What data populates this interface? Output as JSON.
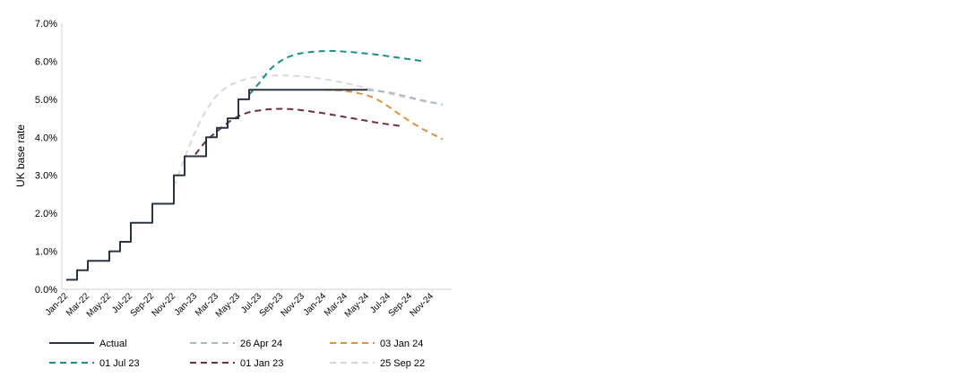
{
  "chart_data": {
    "type": "line",
    "title": "",
    "xlabel": "",
    "ylabel": "UK base rate",
    "ylim": [
      0,
      7
    ],
    "y_ticks": [
      "0.0%",
      "1.0%",
      "2.0%",
      "3.0%",
      "4.0%",
      "5.0%",
      "6.0%",
      "7.0%"
    ],
    "x_tick_labels": [
      "Jan-22",
      "Mar-22",
      "May-22",
      "Jul-22",
      "Sep-22",
      "Nov-22",
      "Jan-23",
      "Mar-23",
      "May-23",
      "Jul-23",
      "Sep-23",
      "Nov-23",
      "Jan-24",
      "Mar-24",
      "May-24",
      "Jul-24",
      "Sep-24",
      "Nov-24"
    ],
    "x_range_months": [
      0,
      35
    ],
    "legend_position": "bottom",
    "series": [
      {
        "name": "Actual",
        "color": "#2b3445",
        "dash": "solid",
        "step": true,
        "points": [
          [
            0,
            0.25
          ],
          [
            1,
            0.25
          ],
          [
            1,
            0.5
          ],
          [
            2,
            0.5
          ],
          [
            2,
            0.75
          ],
          [
            4,
            0.75
          ],
          [
            4,
            1.0
          ],
          [
            5,
            1.0
          ],
          [
            5,
            1.25
          ],
          [
            6,
            1.25
          ],
          [
            6,
            1.75
          ],
          [
            8,
            1.75
          ],
          [
            8,
            2.25
          ],
          [
            10,
            2.25
          ],
          [
            10,
            3.0
          ],
          [
            11,
            3.0
          ],
          [
            11,
            3.5
          ],
          [
            13,
            3.5
          ],
          [
            13,
            4.0
          ],
          [
            14,
            4.0
          ],
          [
            14,
            4.25
          ],
          [
            15,
            4.25
          ],
          [
            15,
            4.5
          ],
          [
            16,
            4.5
          ],
          [
            16,
            5.0
          ],
          [
            17,
            5.0
          ],
          [
            17,
            5.25
          ],
          [
            28,
            5.25
          ]
        ]
      },
      {
        "name": "26 Apr 24",
        "color": "#a9b9c6",
        "dash": "dashed",
        "points": [
          [
            28,
            5.25
          ],
          [
            29,
            5.22
          ],
          [
            30,
            5.18
          ],
          [
            31,
            5.12
          ],
          [
            32,
            5.05
          ],
          [
            33,
            4.98
          ],
          [
            34,
            4.92
          ],
          [
            35,
            4.86
          ]
        ]
      },
      {
        "name": "03 Jan 24",
        "color": "#e0923a",
        "dash": "dashed",
        "points": [
          [
            24,
            5.25
          ],
          [
            25,
            5.24
          ],
          [
            26,
            5.22
          ],
          [
            27,
            5.17
          ],
          [
            28,
            5.1
          ],
          [
            29,
            4.98
          ],
          [
            30,
            4.8
          ],
          [
            31,
            4.6
          ],
          [
            32,
            4.41
          ],
          [
            33,
            4.24
          ],
          [
            34,
            4.09
          ],
          [
            35,
            3.95
          ]
        ]
      },
      {
        "name": "01 Jul 23",
        "color": "#18908f",
        "dash": "dashed",
        "points": [
          [
            17,
            5.12
          ],
          [
            18,
            5.45
          ],
          [
            19,
            5.8
          ],
          [
            20,
            6.02
          ],
          [
            21,
            6.15
          ],
          [
            22,
            6.22
          ],
          [
            23,
            6.25
          ],
          [
            24,
            6.27
          ],
          [
            25,
            6.27
          ],
          [
            26,
            6.25
          ],
          [
            27,
            6.23
          ],
          [
            28,
            6.2
          ],
          [
            29,
            6.17
          ],
          [
            30,
            6.13
          ],
          [
            31,
            6.09
          ],
          [
            32,
            6.05
          ],
          [
            33,
            6.01
          ]
        ]
      },
      {
        "name": "01 Jan 23",
        "color": "#6e2f3f",
        "dash": "dashed",
        "points": [
          [
            12,
            3.55
          ],
          [
            13,
            3.9
          ],
          [
            14,
            4.15
          ],
          [
            15,
            4.38
          ],
          [
            16,
            4.55
          ],
          [
            17,
            4.66
          ],
          [
            18,
            4.71
          ],
          [
            19,
            4.74
          ],
          [
            20,
            4.75
          ],
          [
            21,
            4.74
          ],
          [
            22,
            4.71
          ],
          [
            23,
            4.67
          ],
          [
            24,
            4.63
          ],
          [
            25,
            4.58
          ],
          [
            26,
            4.53
          ],
          [
            27,
            4.48
          ],
          [
            28,
            4.43
          ],
          [
            29,
            4.38
          ],
          [
            30,
            4.34
          ],
          [
            31,
            4.3
          ]
        ]
      },
      {
        "name": "25 Sep 22",
        "color": "#d9d9d9",
        "dash": "dashed",
        "points": [
          [
            10,
            2.7
          ],
          [
            11,
            3.45
          ],
          [
            12,
            4.15
          ],
          [
            13,
            4.7
          ],
          [
            14,
            5.1
          ],
          [
            15,
            5.33
          ],
          [
            16,
            5.47
          ],
          [
            17,
            5.55
          ],
          [
            18,
            5.6
          ],
          [
            19,
            5.62
          ],
          [
            20,
            5.63
          ],
          [
            21,
            5.62
          ],
          [
            22,
            5.6
          ],
          [
            23,
            5.57
          ],
          [
            24,
            5.53
          ],
          [
            25,
            5.48
          ],
          [
            26,
            5.42
          ],
          [
            27,
            5.36
          ],
          [
            28,
            5.29
          ],
          [
            29,
            5.22
          ],
          [
            30,
            5.15
          ],
          [
            31,
            5.08
          ],
          [
            32,
            5.02
          ],
          [
            33,
            4.96
          ],
          [
            34,
            4.9
          ]
        ]
      }
    ],
    "legend": [
      {
        "label": "Actual",
        "series": 0
      },
      {
        "label": "26 Apr 24",
        "series": 1
      },
      {
        "label": "03 Jan 24",
        "series": 2
      },
      {
        "label": "01 Jul 23",
        "series": 3
      },
      {
        "label": "01 Jan 23",
        "series": 4
      },
      {
        "label": "25 Sep 22",
        "series": 5
      }
    ]
  }
}
